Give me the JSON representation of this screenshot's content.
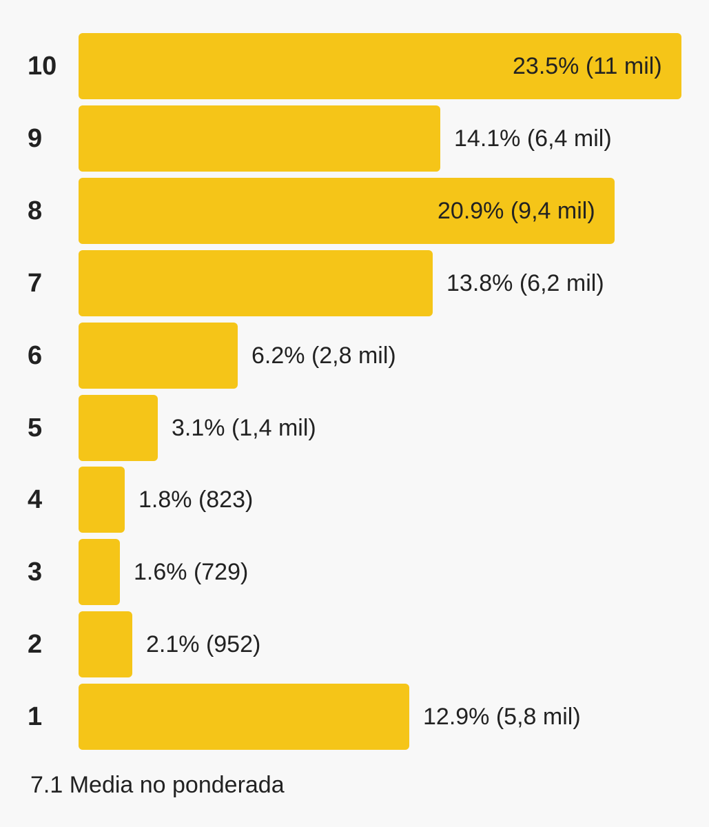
{
  "chart_data": {
    "type": "bar",
    "orientation": "horizontal",
    "categories": [
      "10",
      "9",
      "8",
      "7",
      "6",
      "5",
      "4",
      "3",
      "2",
      "1"
    ],
    "values": [
      23.5,
      14.1,
      20.9,
      13.8,
      6.2,
      3.1,
      1.8,
      1.6,
      2.1,
      12.9
    ],
    "value_unit": "%",
    "counts": [
      "11 mil",
      "6,4 mil",
      "9,4 mil",
      "6,2 mil",
      "2,8 mil",
      "1,4 mil",
      "823",
      "729",
      "952",
      "5,8 mil"
    ],
    "data_labels": [
      "23.5% (11 mil)",
      "14.1% (6,4 mil)",
      "20.9% (9,4 mil)",
      "13.8% (6,2 mil)",
      "6.2% (2,8 mil)",
      "3.1% (1,4 mil)",
      "1.8% (823)",
      "1.6% (729)",
      "2.1% (952)",
      "12.9% (5,8 mil)"
    ],
    "xlim": [
      0,
      23.5
    ],
    "bar_color": "#f5c518",
    "title": "",
    "xlabel": "",
    "ylabel": ""
  },
  "footer": {
    "text": "7.1 Media no ponderada"
  }
}
